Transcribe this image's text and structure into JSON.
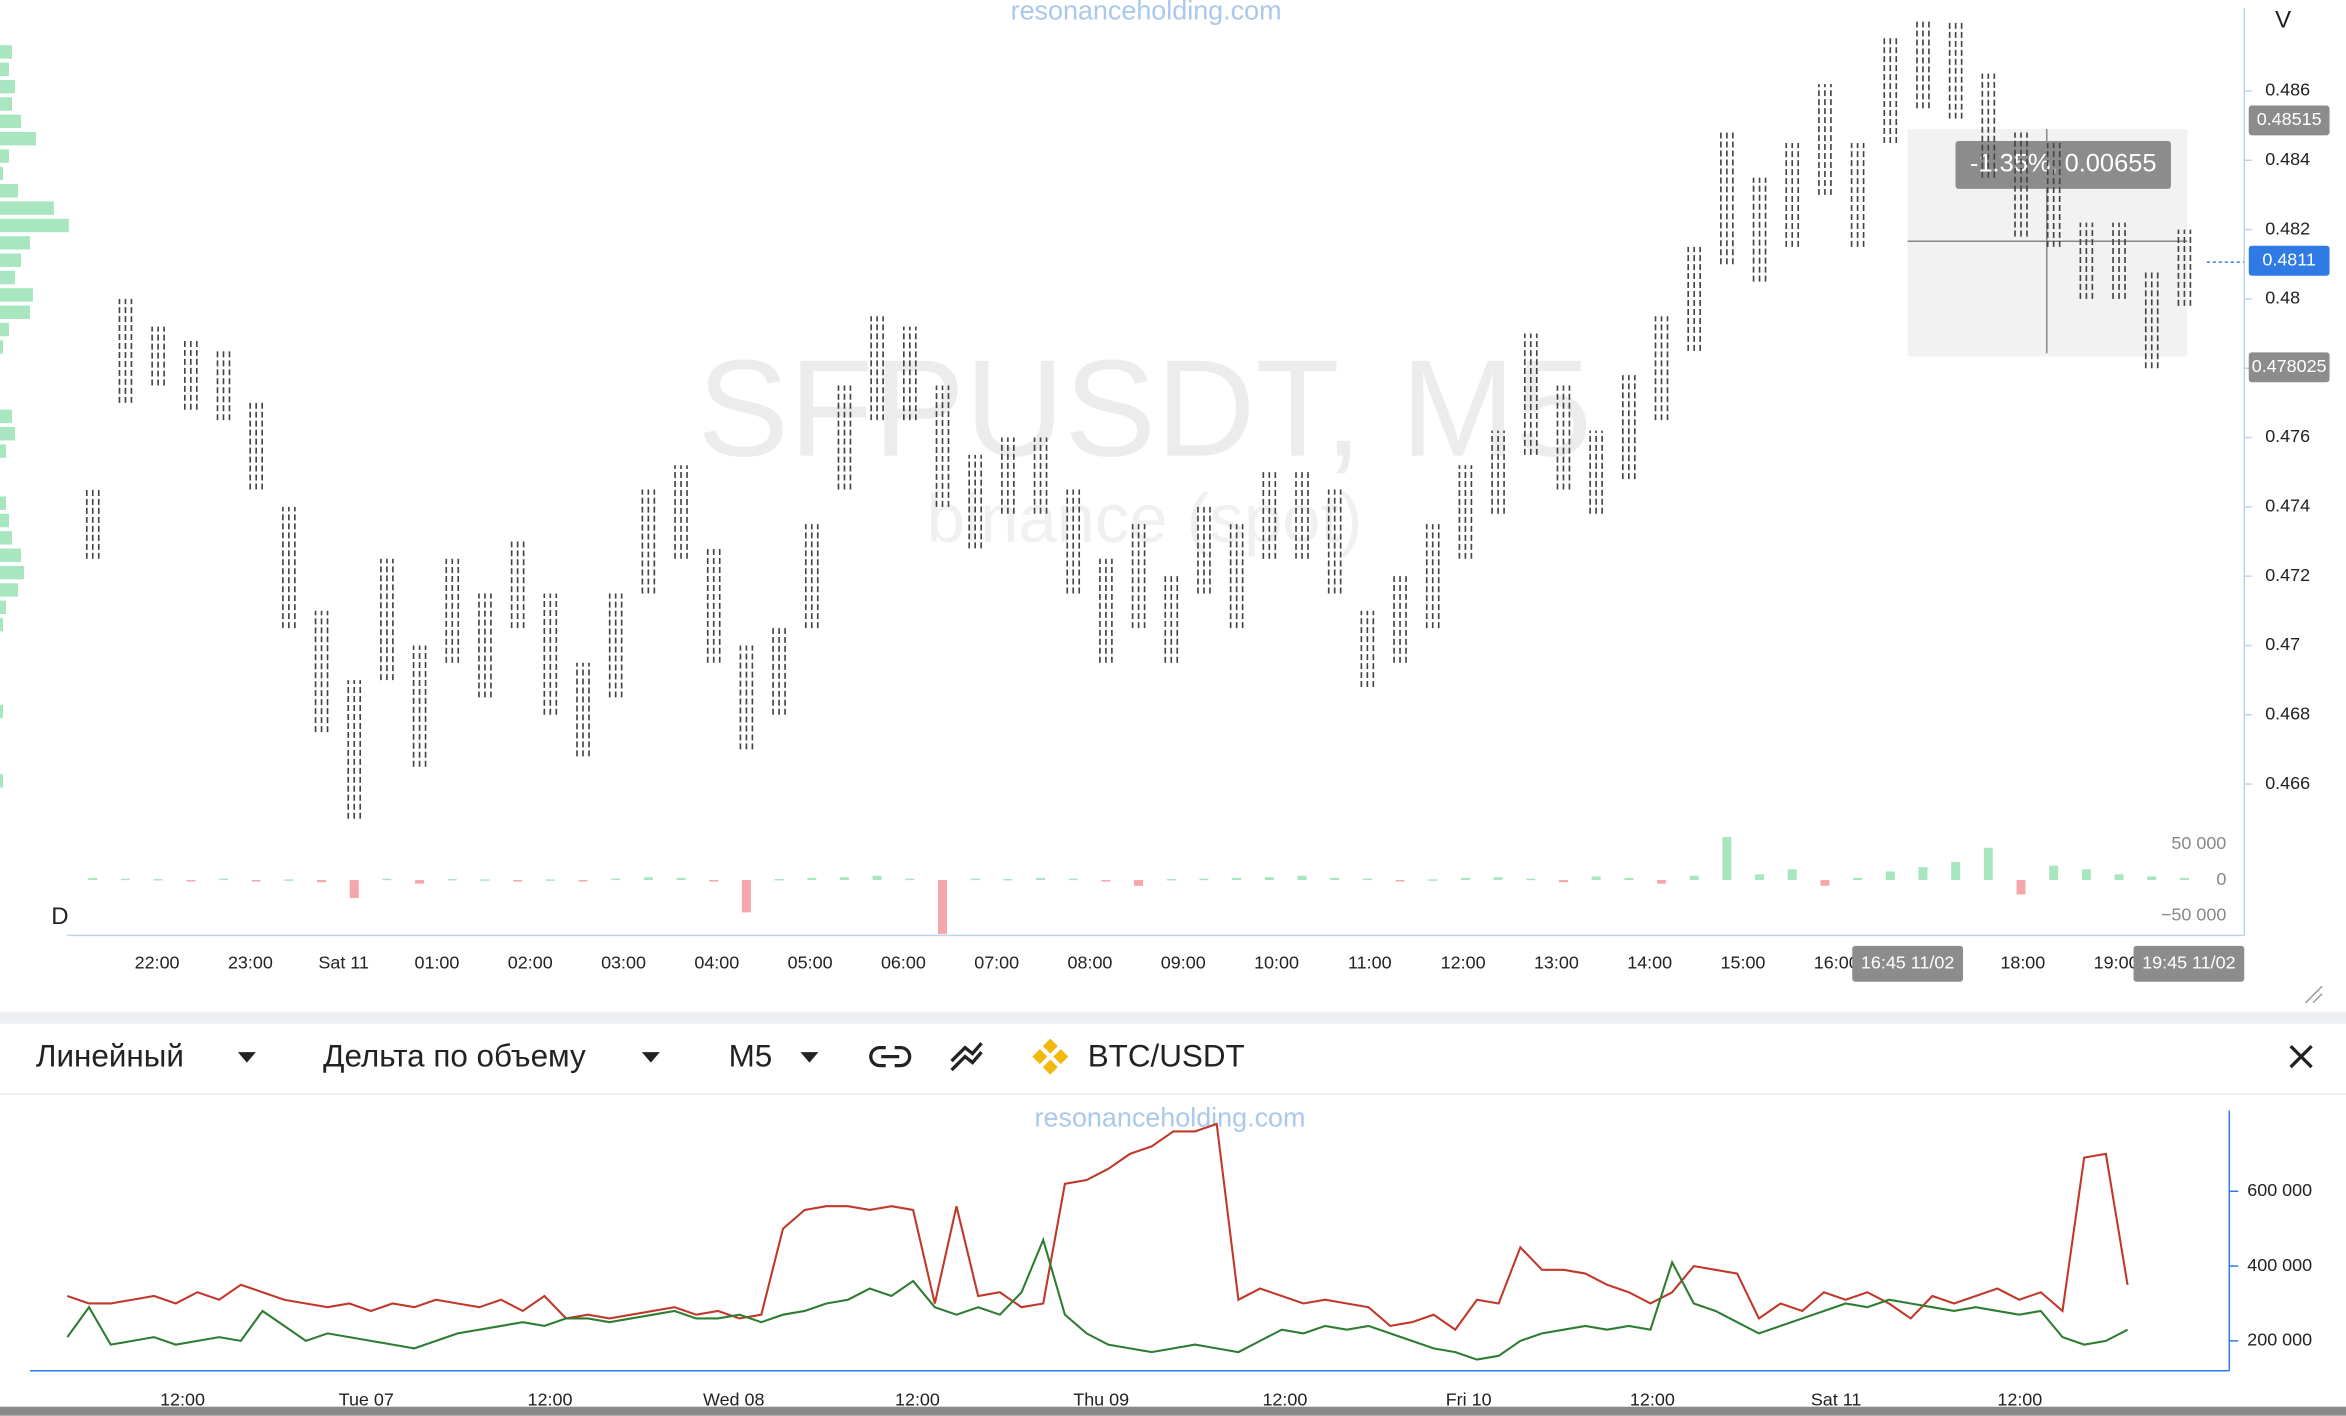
{
  "watermark": {
    "site": "resonanceholding.com",
    "symbol": "SFPUSDT, M5",
    "exchange": "binance (spot)"
  },
  "price_panel": {
    "axis_label": "V",
    "measure_label": "-1.35%, 0.00655",
    "cursor_time_labels": [
      "16:45 11/02",
      "19:45 11/02"
    ]
  },
  "delta_label": "D",
  "toolbar": {
    "chart_style": "Линейный",
    "indicator": "Дельта по объему",
    "timeframe": "M5",
    "pair": "BTC/USDT"
  },
  "bottom_watermark": "resonanceholding.com",
  "chart_data": [
    {
      "type": "range",
      "color": "#444444",
      "ylim": [
        0.465,
        0.4884
      ],
      "yticks": [
        0.466,
        0.468,
        0.47,
        0.472,
        0.474,
        0.476,
        0.478,
        0.48,
        0.482,
        0.484,
        0.486
      ],
      "x_labels": [
        "22:00",
        "23:00",
        "Sat 11",
        "01:00",
        "02:00",
        "03:00",
        "04:00",
        "05:00",
        "06:00",
        "07:00",
        "08:00",
        "09:00",
        "10:00",
        "11:00",
        "12:00",
        "13:00",
        "14:00",
        "15:00",
        "16:00",
        null,
        "18:00",
        "19:00"
      ],
      "low": [
        0.4725,
        0.477,
        0.4775,
        0.4768,
        0.4765,
        0.4745,
        0.4705,
        0.4675,
        0.465,
        0.469,
        0.4665,
        0.4695,
        0.4685,
        0.4705,
        0.468,
        0.4668,
        0.4685,
        0.4715,
        0.4725,
        0.4695,
        0.467,
        0.468,
        0.4705,
        0.4745,
        0.4765,
        0.4765,
        0.474,
        0.4728,
        0.4738,
        0.4738,
        0.4715,
        0.4695,
        0.4705,
        0.4695,
        0.4715,
        0.4705,
        0.4725,
        0.4725,
        0.4715,
        0.4688,
        0.4695,
        0.4705,
        0.4725,
        0.4738,
        0.4755,
        0.4745,
        0.4738,
        0.4748,
        0.4765,
        0.4785,
        0.481,
        0.4805,
        0.4815,
        0.483,
        0.4815,
        0.4845,
        0.4855,
        0.4852,
        0.4835,
        0.4818,
        0.4815,
        0.48,
        0.48,
        0.478,
        0.4798
      ],
      "high": [
        0.4745,
        0.48,
        0.4792,
        0.4788,
        0.4785,
        0.477,
        0.474,
        0.471,
        0.469,
        0.4725,
        0.47,
        0.4725,
        0.4715,
        0.473,
        0.4715,
        0.4695,
        0.4715,
        0.4745,
        0.4752,
        0.4728,
        0.47,
        0.4705,
        0.4735,
        0.4775,
        0.4795,
        0.4792,
        0.4775,
        0.4755,
        0.476,
        0.476,
        0.4745,
        0.4725,
        0.4735,
        0.472,
        0.474,
        0.4735,
        0.475,
        0.475,
        0.4745,
        0.471,
        0.472,
        0.4735,
        0.4752,
        0.4762,
        0.479,
        0.4775,
        0.4762,
        0.4778,
        0.4795,
        0.4815,
        0.4848,
        0.4835,
        0.4845,
        0.4862,
        0.4845,
        0.4876,
        0.488,
        0.488,
        0.4865,
        0.4848,
        0.4845,
        0.4822,
        0.4822,
        0.4808,
        0.482
      ],
      "markers": [
        {
          "value": 0.48515,
          "color": "#8c8c8c"
        },
        {
          "value": 0.4811,
          "color": "#2f7ae5"
        },
        {
          "value": 0.478025,
          "color": "#8c8c8c"
        }
      ],
      "volume_profile": [
        8,
        6,
        10,
        8,
        14,
        24,
        6,
        2,
        12,
        36,
        46,
        20,
        14,
        10,
        22,
        20,
        6,
        2,
        0,
        0,
        0,
        8,
        10,
        4,
        0,
        0,
        4,
        6,
        8,
        14,
        16,
        12,
        4,
        2,
        0,
        0,
        0,
        0,
        2,
        0,
        0,
        0,
        2
      ],
      "profile_color": "#a8e6c0"
    },
    {
      "type": "bar",
      "colors": {
        "positive": "#a8e6c0",
        "negative": "#f4a6aa"
      },
      "ylim": [
        -75000,
        75000
      ],
      "yticks": [
        {
          "value": 50000,
          "label": "50 000"
        },
        0,
        {
          "value": -50000,
          "label": "−50 000"
        }
      ],
      "values": [
        3000,
        2000,
        1500,
        -1000,
        2000,
        -2000,
        1000,
        -3000,
        -25000,
        2000,
        -5000,
        1500,
        1000,
        -2000,
        1000,
        -1500,
        2000,
        4000,
        3000,
        -2000,
        -45000,
        1500,
        3000,
        4000,
        6000,
        2000,
        -75000,
        2000,
        1500,
        3000,
        2000,
        -2000,
        -8000,
        1500,
        2000,
        3000,
        4000,
        6000,
        3000,
        2000,
        -2000,
        1000,
        3000,
        4000,
        2000,
        -3000,
        5000,
        3000,
        -5000,
        6000,
        60000,
        8000,
        15000,
        -8000,
        3000,
        12000,
        18000,
        25000,
        45000,
        -20000,
        20000,
        15000,
        8000,
        5000,
        3000
      ]
    },
    {
      "type": "line",
      "ylim": [
        120000,
        816000
      ],
      "yticks": [
        {
          "value": 200000,
          "label": "200 000"
        },
        {
          "value": 400000,
          "label": "400 000"
        },
        {
          "value": 600000,
          "label": "600 000"
        }
      ],
      "x_labels": [
        "12:00",
        "Tue 07",
        "12:00",
        "Wed 08",
        "12:00",
        "Thu 09",
        "12:00",
        "Fri 10",
        "12:00",
        "Sat 11",
        "12:00"
      ],
      "series": [
        {
          "color": "#c0392b",
          "values": [
            320000,
            300000,
            300000,
            310000,
            320000,
            300000,
            330000,
            310000,
            350000,
            330000,
            310000,
            300000,
            290000,
            300000,
            280000,
            300000,
            290000,
            310000,
            300000,
            290000,
            310000,
            280000,
            320000,
            260000,
            270000,
            260000,
            270000,
            280000,
            290000,
            270000,
            280000,
            260000,
            270000,
            500000,
            550000,
            560000,
            560000,
            550000,
            560000,
            550000,
            300000,
            560000,
            320000,
            330000,
            290000,
            300000,
            620000,
            630000,
            660000,
            700000,
            720000,
            760000,
            760000,
            780000,
            310000,
            340000,
            320000,
            300000,
            310000,
            300000,
            290000,
            240000,
            250000,
            270000,
            230000,
            310000,
            300000,
            450000,
            390000,
            390000,
            380000,
            350000,
            330000,
            300000,
            330000,
            400000,
            390000,
            380000,
            260000,
            300000,
            280000,
            330000,
            310000,
            330000,
            300000,
            260000,
            320000,
            300000,
            320000,
            340000,
            310000,
            330000,
            280000,
            690000,
            700000,
            350000
          ]
        },
        {
          "color": "#2e7d32",
          "values": [
            210000,
            290000,
            190000,
            200000,
            210000,
            190000,
            200000,
            210000,
            200000,
            280000,
            240000,
            200000,
            220000,
            210000,
            200000,
            190000,
            180000,
            200000,
            220000,
            230000,
            240000,
            250000,
            240000,
            260000,
            260000,
            250000,
            260000,
            270000,
            280000,
            260000,
            260000,
            270000,
            250000,
            270000,
            280000,
            300000,
            310000,
            340000,
            320000,
            360000,
            290000,
            270000,
            290000,
            270000,
            330000,
            470000,
            270000,
            220000,
            190000,
            180000,
            170000,
            180000,
            190000,
            180000,
            170000,
            200000,
            230000,
            220000,
            240000,
            230000,
            240000,
            220000,
            200000,
            180000,
            170000,
            150000,
            160000,
            200000,
            220000,
            230000,
            240000,
            230000,
            240000,
            230000,
            410000,
            300000,
            280000,
            250000,
            220000,
            240000,
            260000,
            280000,
            300000,
            290000,
            310000,
            300000,
            290000,
            280000,
            290000,
            280000,
            270000,
            280000,
            210000,
            190000,
            200000,
            230000
          ]
        }
      ]
    }
  ]
}
